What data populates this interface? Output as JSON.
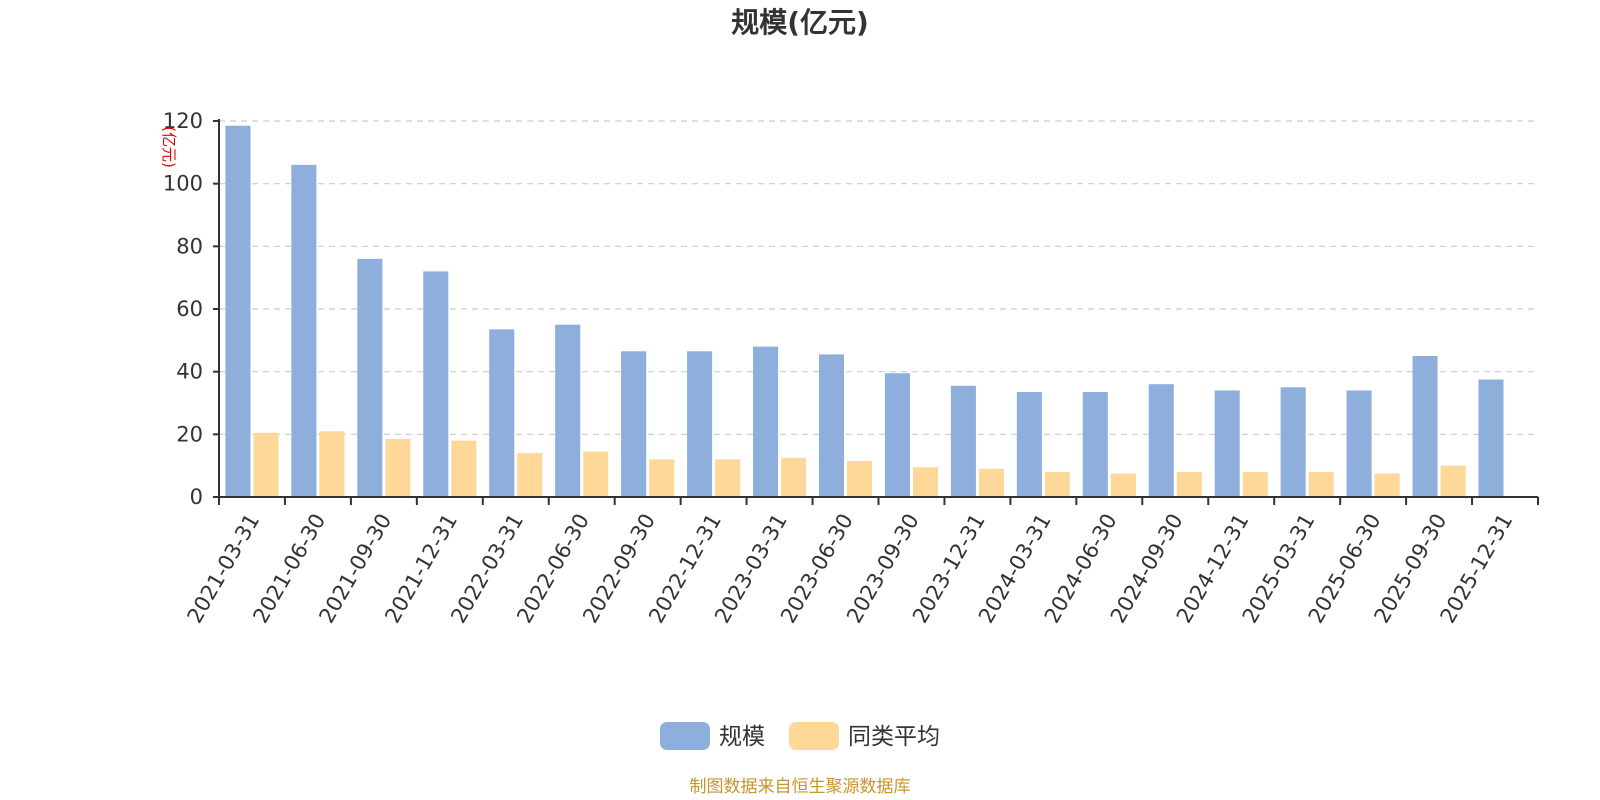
{
  "chart_data": {
    "type": "bar",
    "title": "规模(亿元)",
    "ylabel": "(亿元)",
    "ylim": [
      0,
      120
    ],
    "yticks": [
      "0",
      "20",
      "40",
      "60",
      "80",
      "100",
      "120"
    ],
    "grid": true,
    "legend_position": "bottom-center",
    "categories": [
      "2021-03-31",
      "2021-06-30",
      "2021-09-30",
      "2021-12-31",
      "2022-03-31",
      "2022-06-30",
      "2022-09-30",
      "2022-12-31",
      "2023-03-31",
      "2023-06-30",
      "2023-09-30",
      "2023-12-31",
      "2024-03-31",
      "2024-06-30",
      "2024-09-30",
      "2024-12-31",
      "2025-03-31",
      "2025-06-30",
      "2025-09-30",
      "2025-12-31"
    ],
    "series": [
      {
        "name": "规模",
        "color": "#8eaedb",
        "values": [
          118.5,
          106,
          76,
          72,
          53.5,
          55,
          46.5,
          46.5,
          48,
          45.5,
          39.5,
          35.5,
          33.5,
          33.5,
          36,
          34,
          35,
          34,
          45,
          37.5
        ]
      },
      {
        "name": "同类平均",
        "color": "#fdd898",
        "values": [
          20.5,
          21,
          18.5,
          18,
          14,
          14.5,
          12,
          12,
          12.5,
          11.5,
          9.5,
          9,
          8,
          7.5,
          8,
          8,
          8,
          7.5,
          10,
          null
        ]
      }
    ]
  },
  "source_note": "制图数据来自恒生聚源数据库"
}
